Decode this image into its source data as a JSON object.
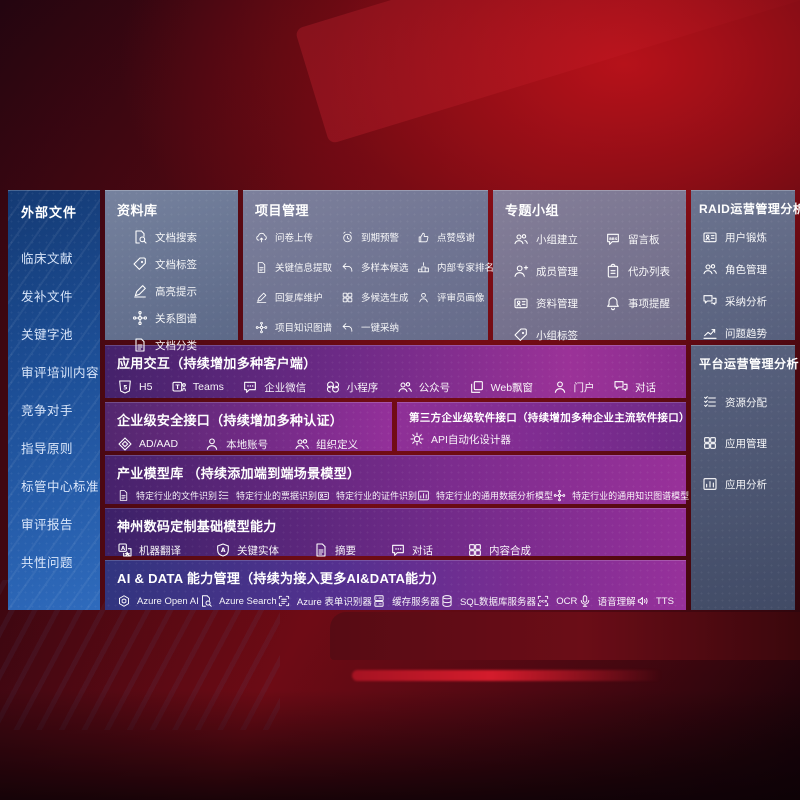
{
  "colors": {
    "background_red": "#9d0e16",
    "sidebar_blue": "#2a63b4",
    "panel_slate": "#6b7694",
    "band_purple_dark": "#45226b",
    "band_magenta": "#9b3298",
    "band_indigo": "#31357f"
  },
  "sidebar": {
    "title": "外部文件",
    "items": [
      "临床文献",
      "发补文件",
      "关键字池",
      "审评培训内容",
      "竞争对手",
      "指导原则",
      "标管中心标准",
      "审评报告",
      "共性问题"
    ]
  },
  "panels": {
    "library": {
      "title": "资料库",
      "items": [
        {
          "icon": "doc-search",
          "label": "文档搜索"
        },
        {
          "icon": "tag",
          "label": "文档标签"
        },
        {
          "icon": "pen",
          "label": "高亮提示"
        },
        {
          "icon": "network",
          "label": "关系图谱"
        },
        {
          "icon": "doc",
          "label": "文档分类"
        }
      ]
    },
    "project": {
      "title": "项目管理",
      "items": [
        {
          "icon": "cloud-upload",
          "label": "问卷上传"
        },
        {
          "icon": "alarm",
          "label": "到期预警"
        },
        {
          "icon": "thumbs-up",
          "label": "点赞感谢"
        },
        {
          "icon": "doc",
          "label": "关键信息提取"
        },
        {
          "icon": "reply",
          "label": "多样本候选"
        },
        {
          "icon": "podium",
          "label": "内部专家排名"
        },
        {
          "icon": "pen",
          "label": "回复库维护"
        },
        {
          "icon": "grid",
          "label": "多候选生成"
        },
        {
          "icon": "person",
          "label": "评审员画像"
        },
        {
          "icon": "network",
          "label": "项目知识图谱"
        },
        {
          "icon": "reply",
          "label": "一键采纳"
        }
      ]
    },
    "group": {
      "title": "专题小组",
      "items": [
        {
          "icon": "people",
          "label": "小组建立"
        },
        {
          "icon": "bbs",
          "label": "留言板"
        },
        {
          "icon": "person-add",
          "label": "成员管理"
        },
        {
          "icon": "clipboard",
          "label": "代办列表"
        },
        {
          "icon": "card",
          "label": "资料管理"
        },
        {
          "icon": "bell",
          "label": "事项提醒"
        },
        {
          "icon": "tag",
          "label": "小组标签"
        }
      ]
    },
    "raid": {
      "title": "RAID运营管理分析",
      "items": [
        {
          "icon": "card",
          "label": "用户锻炼"
        },
        {
          "icon": "people",
          "label": "角色管理"
        },
        {
          "icon": "chat-qa",
          "label": "采纳分析"
        },
        {
          "icon": "trend",
          "label": "问题趋势"
        }
      ]
    },
    "platform": {
      "title": "平台运营管理分析",
      "items": [
        {
          "icon": "list",
          "label": "资源分配"
        },
        {
          "icon": "grid",
          "label": "应用管理"
        },
        {
          "icon": "chart",
          "label": "应用分析"
        }
      ]
    }
  },
  "rows": {
    "interaction": {
      "title": "应用交互（持续增加多种客户端）",
      "items": [
        {
          "icon": "h5",
          "label": "H5"
        },
        {
          "icon": "teams",
          "label": "Teams"
        },
        {
          "icon": "chat",
          "label": "企业微信"
        },
        {
          "icon": "scurve",
          "label": "小程序"
        },
        {
          "icon": "people",
          "label": "公众号"
        },
        {
          "icon": "window",
          "label": "Web飘窗"
        },
        {
          "icon": "person",
          "label": "门户"
        },
        {
          "icon": "chat-qa",
          "label": "对话"
        }
      ]
    },
    "security": {
      "title": "企业级安全接口（持续增加多种认证）",
      "items": [
        {
          "icon": "diamond",
          "label": "AD/AAD"
        },
        {
          "icon": "person",
          "label": "本地账号"
        },
        {
          "icon": "people",
          "label": "组织定义"
        }
      ]
    },
    "thirdparty": {
      "title": "第三方企业级软件接口（持续增加多种企业主流软件接口）",
      "items": [
        {
          "icon": "gear",
          "label": "API自动化设计器"
        }
      ]
    },
    "industry": {
      "title": "产业模型库 （持续添加端到端场景模型）",
      "items": [
        {
          "icon": "doc",
          "label": "特定行业的文件识别"
        },
        {
          "icon": "list",
          "label": "特定行业的票据识别"
        },
        {
          "icon": "card",
          "label": "特定行业的证件识别"
        },
        {
          "icon": "chart",
          "label": "特定行业的通用数据分析模型"
        },
        {
          "icon": "network",
          "label": "特定行业的通用知识图谱模型"
        }
      ]
    },
    "basemodel": {
      "title": "神州数码定制基础模型能力",
      "items": [
        {
          "icon": "translate",
          "label": "机器翻译"
        },
        {
          "icon": "shield-a",
          "label": "关键实体"
        },
        {
          "icon": "doc",
          "label": "摘要"
        },
        {
          "icon": "chat",
          "label": "对话"
        },
        {
          "icon": "grid",
          "label": "内容合成"
        }
      ]
    },
    "aidata": {
      "title": "AI & DATA 能力管理（持续为接入更多AI&DATA能力）",
      "items": [
        {
          "icon": "openai",
          "label": "Azure Open AI"
        },
        {
          "icon": "doc-search",
          "label": "Azure Search"
        },
        {
          "icon": "form",
          "label": "Azure 表单识别器"
        },
        {
          "icon": "server",
          "label": "缓存服务器"
        },
        {
          "icon": "db",
          "label": "SQL数据库服务器"
        },
        {
          "icon": "ocr",
          "label": "OCR"
        },
        {
          "icon": "speech",
          "label": "语音理解"
        },
        {
          "icon": "tts",
          "label": "TTS"
        }
      ]
    }
  }
}
